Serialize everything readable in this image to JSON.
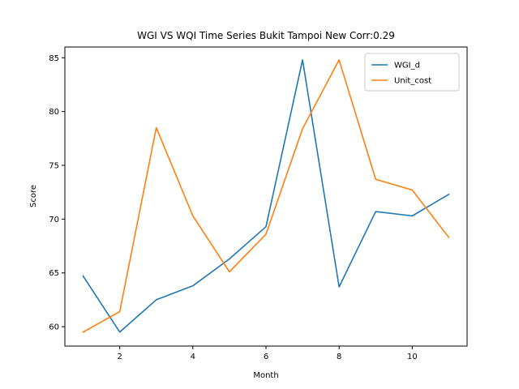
{
  "chart_data": {
    "type": "line",
    "title": "WGI VS WQI Time Series Bukit Tampoi New Corr:0.29",
    "xlabel": "Month",
    "ylabel": "Score",
    "x": [
      1,
      2,
      3,
      4,
      5,
      6,
      7,
      8,
      9,
      10,
      11
    ],
    "xlim": [
      0.5,
      11.5
    ],
    "ylim": [
      58.2,
      86.0
    ],
    "xticks": [
      2,
      4,
      6,
      8,
      10
    ],
    "yticks": [
      60,
      65,
      70,
      75,
      80,
      85
    ],
    "grid": false,
    "legend_position": "top-right",
    "series": [
      {
        "name": "WGI_d",
        "color": "#1f77b4",
        "values": [
          64.7,
          59.5,
          62.5,
          63.8,
          66.3,
          69.3,
          84.8,
          63.7,
          70.7,
          70.3,
          72.3
        ]
      },
      {
        "name": "Unit_cost",
        "color": "#ff7f0e",
        "values": [
          59.5,
          61.4,
          78.5,
          70.3,
          65.1,
          68.6,
          78.4,
          84.8,
          73.7,
          72.7,
          68.3
        ]
      }
    ]
  }
}
